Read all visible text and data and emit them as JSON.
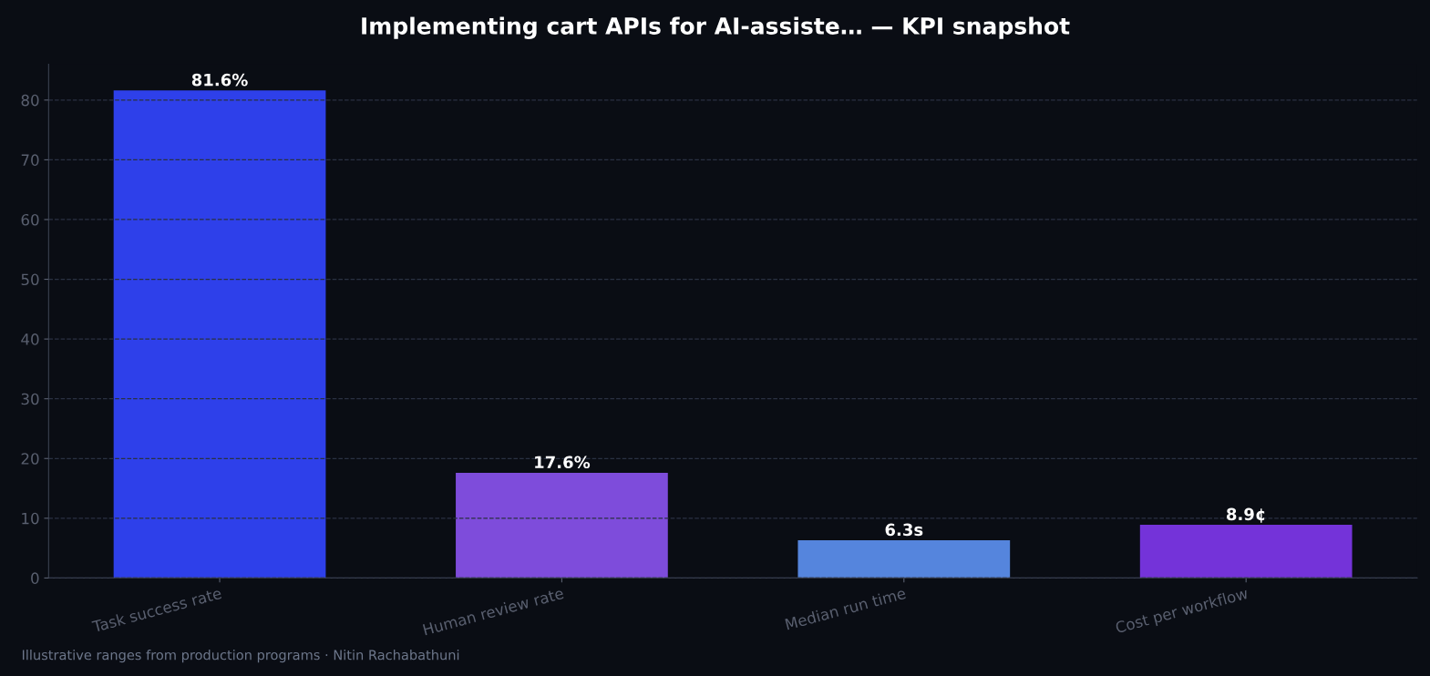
{
  "chart_data": {
    "type": "bar",
    "title": "Implementing cart APIs for AI-assiste… — KPI snapshot",
    "categories": [
      "Task success rate",
      "Human review rate",
      "Median run time",
      "Cost per workflow"
    ],
    "values": [
      81.6,
      17.6,
      6.3,
      8.9
    ],
    "colors": [
      "#2e40ea",
      "#7e4cdb",
      "#5585dd",
      "#7433d9"
    ],
    "value_labels": [
      "81.6%",
      "17.6%",
      "6.3s",
      "8.9¢"
    ],
    "ylim": [
      0,
      86
    ],
    "yticks": [
      0,
      10,
      20,
      30,
      40,
      50,
      60,
      70,
      80
    ],
    "grid": "y",
    "annotations": [
      "Illustrative ranges from production programs · Nitin Rachabathuni"
    ]
  }
}
